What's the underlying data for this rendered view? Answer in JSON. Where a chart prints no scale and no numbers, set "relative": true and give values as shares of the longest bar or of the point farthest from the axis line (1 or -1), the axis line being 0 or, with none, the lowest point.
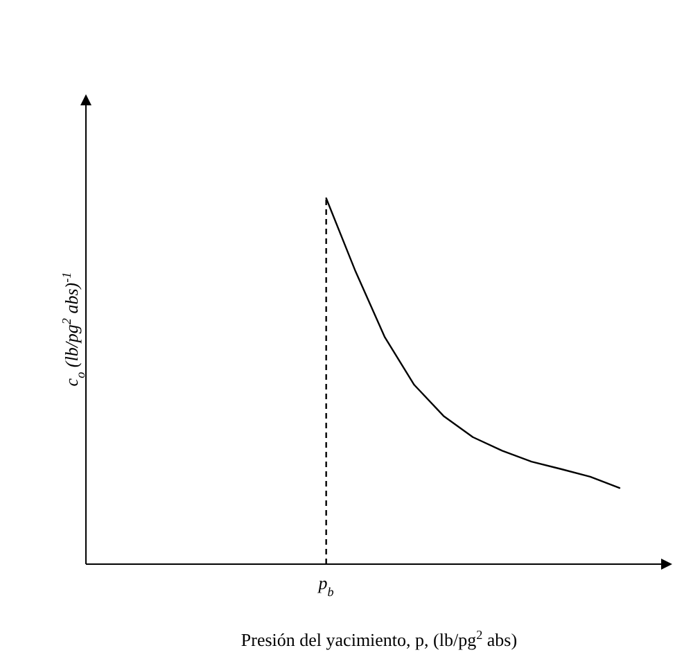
{
  "chart_data": {
    "type": "line",
    "relative": true,
    "xlabel": "Presión del yacimiento, p, (lb/pg$^{2}$ abs)",
    "ylabel": "c$_{o}$ (lb/pg$^{2}$ abs)$^{-1}$",
    "categories": [
      null,
      null,
      null,
      null,
      null,
      null,
      null,
      null,
      null,
      null,
      null,
      null,
      null,
      null,
      null,
      null,
      null,
      null,
      null
    ],
    "annotations": [
      "p$_{b}$"
    ],
    "series": [
      {
        "color": "#000000",
        "values": [
          null,
          null,
          null,
          null,
          null,
          null,
          null,
          null,
          1,
          0.8,
          0.62,
          0.49,
          0.405,
          0.347,
          0.31,
          0.28,
          0.26,
          0.239,
          0.208
        ]
      }
    ]
  }
}
